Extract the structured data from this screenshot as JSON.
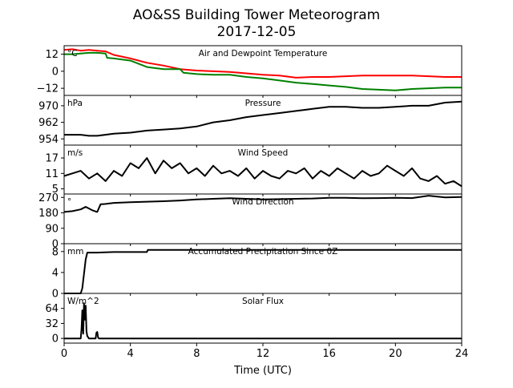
{
  "figure": {
    "title_line1": "AO&SS Building Tower Meteorogram",
    "title_line2": "2017-12-05",
    "xlabel": "Time (UTC)",
    "xticks": [
      "0",
      "4",
      "8",
      "12",
      "16",
      "20",
      "24"
    ]
  },
  "chart_data": [
    {
      "type": "line",
      "title": "Air and Dewpoint Temperature",
      "unit": "°C",
      "xlim": [
        0,
        24
      ],
      "ylim": [
        -17,
        18
      ],
      "yticks": [
        12,
        0,
        -12
      ],
      "ytick_labels": [
        "12",
        "0",
        "−12"
      ],
      "series": [
        {
          "color": "#ff0000",
          "x": [
            0,
            0.5,
            1,
            1.5,
            2,
            2.5,
            3,
            4,
            5,
            6,
            7,
            8,
            9,
            10,
            11,
            12,
            13,
            14,
            15,
            16,
            17,
            18,
            19,
            20,
            21,
            22,
            23,
            24
          ],
          "y": [
            15,
            15.5,
            14.5,
            15,
            14.5,
            14,
            11.5,
            9,
            6,
            4,
            1.5,
            0.5,
            0,
            -0.5,
            -1.5,
            -2.5,
            -3,
            -4.5,
            -4,
            -4,
            -3.5,
            -3,
            -3,
            -3,
            -3,
            -3.5,
            -4,
            -4
          ]
        },
        {
          "color": "#008000",
          "x": [
            0,
            0.5,
            1,
            1.5,
            2,
            2.5,
            2.6,
            3,
            4,
            5,
            6,
            7,
            7.2,
            8,
            9,
            10,
            11,
            12,
            13,
            14,
            15,
            16,
            17,
            18,
            19,
            20,
            21,
            22,
            23,
            24
          ],
          "y": [
            12,
            12,
            12.5,
            13,
            13,
            12.5,
            9.5,
            9,
            7.5,
            3,
            1.5,
            1.5,
            -1,
            -2,
            -2.5,
            -2.5,
            -4,
            -5,
            -6.5,
            -8,
            -9,
            -10,
            -11,
            -12.5,
            -13,
            -13.5,
            -12.5,
            -12,
            -11.5,
            -11.5
          ]
        }
      ]
    },
    {
      "type": "line",
      "title": "Pressure",
      "unit": "hPa",
      "xlim": [
        0,
        24
      ],
      "ylim": [
        951,
        975
      ],
      "yticks": [
        970,
        962,
        954
      ],
      "ytick_labels": [
        "970",
        "962",
        "954"
      ],
      "series": [
        {
          "color": "#000000",
          "x": [
            0,
            1,
            1.5,
            2,
            3,
            4,
            5,
            6,
            7,
            8,
            9,
            10,
            11,
            12,
            13,
            14,
            15,
            16,
            17,
            18,
            19,
            20,
            21,
            22,
            23,
            24
          ],
          "y": [
            956,
            956,
            955.5,
            955.5,
            956.5,
            957,
            958,
            958.5,
            959,
            960,
            962,
            963,
            964.5,
            965.5,
            966.5,
            967.5,
            968.5,
            969.5,
            969.5,
            969,
            969,
            969.5,
            970,
            970,
            971.5,
            972
          ]
        }
      ]
    },
    {
      "type": "line",
      "title": "Wind Speed",
      "unit": "m/s",
      "xlim": [
        0,
        24
      ],
      "ylim": [
        3,
        22
      ],
      "yticks": [
        17,
        11,
        5
      ],
      "ytick_labels": [
        "17",
        "11",
        "5"
      ],
      "series": [
        {
          "color": "#000000",
          "x": [
            0,
            0.5,
            1,
            1.5,
            2,
            2.5,
            3,
            3.5,
            4,
            4.5,
            5,
            5.5,
            6,
            6.5,
            7,
            7.5,
            8,
            8.5,
            9,
            9.5,
            10,
            10.5,
            11,
            11.5,
            12,
            12.5,
            13,
            13.5,
            14,
            14.5,
            15,
            15.5,
            16,
            16.5,
            17,
            17.5,
            18,
            18.5,
            19,
            19.5,
            20,
            20.5,
            21,
            21.5,
            22,
            22.5,
            23,
            23.5,
            24
          ],
          "y": [
            10,
            11,
            12,
            9,
            11,
            8,
            12,
            10,
            15,
            13,
            17,
            11,
            16,
            13,
            15,
            11,
            13,
            10,
            14,
            11,
            12,
            10,
            13,
            9,
            12,
            10,
            9,
            12,
            11,
            13,
            9,
            12,
            10,
            13,
            11,
            9,
            12,
            10,
            11,
            14,
            12,
            10,
            13,
            9,
            8,
            10,
            7,
            8,
            6
          ]
        }
      ]
    },
    {
      "type": "line",
      "title": "Wind Direction",
      "unit": "°",
      "xlim": [
        0,
        24
      ],
      "ylim": [
        0,
        290
      ],
      "yticks": [
        270,
        180,
        90,
        0
      ],
      "ytick_labels": [
        "270",
        "180",
        "90",
        "0"
      ],
      "series": [
        {
          "color": "#000000",
          "x": [
            0,
            0.5,
            1,
            1.3,
            1.7,
            2,
            2.2,
            2.5,
            3,
            4,
            5,
            6,
            7,
            8,
            9,
            10,
            11,
            12,
            13,
            14,
            15,
            16,
            17,
            18,
            19,
            20,
            21,
            22,
            23,
            24
          ],
          "y": [
            185,
            190,
            200,
            215,
            195,
            185,
            230,
            232,
            238,
            242,
            245,
            248,
            252,
            258,
            262,
            265,
            262,
            258,
            260,
            262,
            264,
            268,
            268,
            265,
            266,
            268,
            266,
            280,
            270,
            272
          ]
        }
      ]
    },
    {
      "type": "line",
      "title": "Accumulated Precipitation Since 0Z",
      "unit": "mm",
      "xlim": [
        0,
        24
      ],
      "ylim": [
        0,
        9.5
      ],
      "yticks": [
        8,
        4,
        0
      ],
      "ytick_labels": [
        "8",
        "4",
        "0"
      ],
      "series": [
        {
          "color": "#000000",
          "x": [
            0,
            1,
            1.1,
            1.3,
            1.4,
            2,
            3,
            4,
            5,
            5.05,
            6,
            10,
            16,
            24
          ],
          "y": [
            0,
            0,
            1,
            6.5,
            7.8,
            7.8,
            7.9,
            7.9,
            7.9,
            8.3,
            8.3,
            8.3,
            8.3,
            8.3
          ]
        }
      ]
    },
    {
      "type": "line",
      "title": "Solar Flux",
      "unit": "W/m^2",
      "xlim": [
        0,
        24
      ],
      "ylim": [
        -10,
        96
      ],
      "yticks": [
        64,
        32,
        0
      ],
      "ytick_labels": [
        "64",
        "32",
        "0"
      ],
      "series": [
        {
          "color": "#000000",
          "x": [
            0,
            1,
            1.05,
            1.1,
            1.15,
            1.2,
            1.25,
            1.3,
            1.35,
            1.4,
            1.5,
            1.9,
            1.95,
            2,
            2.05,
            2.1,
            3,
            24
          ],
          "y": [
            0,
            0,
            20,
            60,
            10,
            75,
            40,
            70,
            15,
            5,
            0,
            0,
            12,
            14,
            2,
            0,
            0,
            0
          ]
        }
      ]
    }
  ]
}
